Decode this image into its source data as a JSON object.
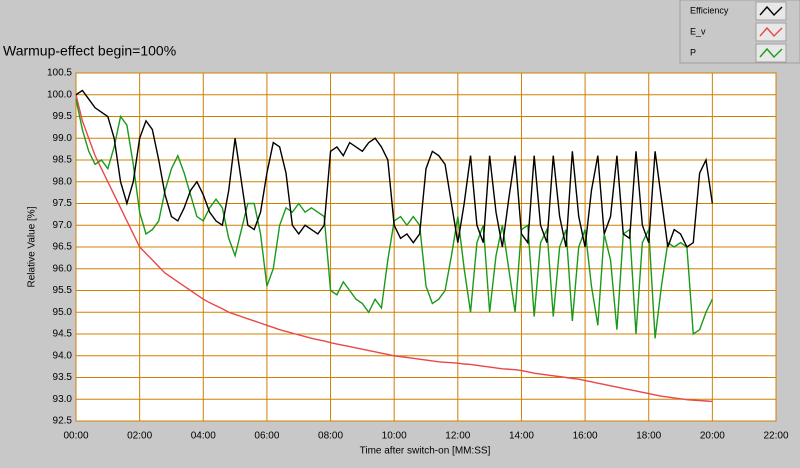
{
  "chart_data": {
    "type": "line",
    "title": "Warmup-effect begin=100%",
    "x_label": "Time after switch-on [MM:SS]",
    "y_label": "Relative Value [%]",
    "grid": true,
    "grid_color": "#d08000",
    "xlim": [
      0,
      22
    ],
    "xticks": [
      {
        "value": 0,
        "label": "00:00"
      },
      {
        "value": 2,
        "label": "02:00"
      },
      {
        "value": 4,
        "label": "04:00"
      },
      {
        "value": 6,
        "label": "06:00"
      },
      {
        "value": 8,
        "label": "08:00"
      },
      {
        "value": 10,
        "label": "10:00"
      },
      {
        "value": 12,
        "label": "12:00"
      },
      {
        "value": 14,
        "label": "14:00"
      },
      {
        "value": 16,
        "label": "16:00"
      },
      {
        "value": 18,
        "label": "18:00"
      },
      {
        "value": 20,
        "label": "20:00"
      },
      {
        "value": 22,
        "label": "22:00"
      }
    ],
    "ylim": [
      92.5,
      100.5
    ],
    "yticks": [
      92.5,
      {
        "value": 93,
        "label": "93.0"
      },
      93.5,
      {
        "value": 94,
        "label": "94.0"
      },
      94.5,
      {
        "value": 95,
        "label": "95.0"
      },
      95.5,
      {
        "value": 96,
        "label": "96.0"
      },
      96.5,
      {
        "value": 97,
        "label": "97.0"
      },
      97.5,
      {
        "value": 98,
        "label": "98.0"
      },
      98.5,
      {
        "value": 99,
        "label": "99.0"
      },
      99.5,
      {
        "value": 100,
        "label": "100.0"
      },
      100.5
    ],
    "x": [
      0,
      0.2,
      0.4,
      0.6,
      0.8,
      1,
      1.2,
      1.4,
      1.6,
      1.8,
      2,
      2.2,
      2.4,
      2.6,
      2.8,
      3,
      3.2,
      3.4,
      3.6,
      3.8,
      4,
      4.2,
      4.4,
      4.6,
      4.8,
      5,
      5.2,
      5.4,
      5.6,
      5.8,
      6,
      6.2,
      6.4,
      6.6,
      6.8,
      7,
      7.2,
      7.4,
      7.6,
      7.8,
      8,
      8.2,
      8.4,
      8.6,
      8.8,
      9,
      9.2,
      9.4,
      9.6,
      9.8,
      10,
      10.2,
      10.4,
      10.6,
      10.8,
      11,
      11.2,
      11.4,
      11.6,
      11.8,
      12,
      12.2,
      12.4,
      12.6,
      12.8,
      13,
      13.2,
      13.4,
      13.6,
      13.8,
      14,
      14.2,
      14.4,
      14.6,
      14.8,
      15,
      15.2,
      15.4,
      15.6,
      15.8,
      16,
      16.2,
      16.4,
      16.6,
      16.8,
      17,
      17.2,
      17.4,
      17.6,
      17.8,
      18,
      18.2,
      18.4,
      18.6,
      18.8,
      19,
      19.2,
      19.4,
      19.6,
      19.8,
      20
    ],
    "series": [
      {
        "name": "Efficiency",
        "color": "#000000",
        "values": [
          100.0,
          100.1,
          99.9,
          99.7,
          99.6,
          99.5,
          99.0,
          98.0,
          97.5,
          98.0,
          99.0,
          99.4,
          99.2,
          98.5,
          97.7,
          97.2,
          97.1,
          97.4,
          97.8,
          98.0,
          97.7,
          97.3,
          97.1,
          97.0,
          97.8,
          99.0,
          98.0,
          97.0,
          96.9,
          97.3,
          98.2,
          98.9,
          98.8,
          98.2,
          97.0,
          96.8,
          97.0,
          96.9,
          96.8,
          97.0,
          98.7,
          98.8,
          98.6,
          98.9,
          98.8,
          98.7,
          98.9,
          99.0,
          98.8,
          98.5,
          97.0,
          96.7,
          96.8,
          96.6,
          96.8,
          98.3,
          98.7,
          98.6,
          98.4,
          97.5,
          96.6,
          97.5,
          98.6,
          97.0,
          96.6,
          98.6,
          97.3,
          96.5,
          97.6,
          98.6,
          96.8,
          96.6,
          98.6,
          97.0,
          96.6,
          98.6,
          97.2,
          96.5,
          98.7,
          97.2,
          96.5,
          97.8,
          98.6,
          96.8,
          97.2,
          98.6,
          96.8,
          96.7,
          98.7,
          97.0,
          96.6,
          98.7,
          97.6,
          96.5,
          96.9,
          96.8,
          96.5,
          96.6,
          98.2,
          98.5,
          97.5
        ]
      },
      {
        "name": "E_v",
        "color": "#e84848",
        "values": [
          100.0,
          99.4,
          99.0,
          98.6,
          98.3,
          98.0,
          97.7,
          97.4,
          97.1,
          96.8,
          96.5,
          96.35,
          96.2,
          96.05,
          95.9,
          95.8,
          95.7,
          95.6,
          95.5,
          95.4,
          95.3,
          95.22,
          95.15,
          95.08,
          95.0,
          94.95,
          94.9,
          94.85,
          94.8,
          94.75,
          94.7,
          94.65,
          94.6,
          94.56,
          94.52,
          94.48,
          94.44,
          94.4,
          94.37,
          94.34,
          94.3,
          94.27,
          94.24,
          94.21,
          94.18,
          94.15,
          94.12,
          94.09,
          94.06,
          94.03,
          94.0,
          93.98,
          93.96,
          93.94,
          93.92,
          93.9,
          93.88,
          93.86,
          93.85,
          93.84,
          93.83,
          93.81,
          93.8,
          93.78,
          93.76,
          93.74,
          93.72,
          93.7,
          93.69,
          93.68,
          93.66,
          93.63,
          93.6,
          93.58,
          93.56,
          93.54,
          93.52,
          93.5,
          93.48,
          93.46,
          93.43,
          93.4,
          93.37,
          93.34,
          93.31,
          93.28,
          93.25,
          93.22,
          93.19,
          93.16,
          93.13,
          93.1,
          93.07,
          93.05,
          93.03,
          93.01,
          92.99,
          92.98,
          92.97,
          92.96,
          92.95
        ]
      },
      {
        "name": "P",
        "color": "#1a9a1a",
        "values": [
          99.9,
          99.2,
          98.7,
          98.4,
          98.5,
          98.3,
          98.8,
          99.5,
          99.3,
          98.4,
          97.3,
          96.8,
          96.9,
          97.1,
          97.8,
          98.3,
          98.6,
          98.2,
          97.7,
          97.2,
          97.1,
          97.4,
          97.6,
          97.4,
          96.7,
          96.3,
          96.9,
          97.5,
          97.5,
          96.8,
          95.6,
          96.0,
          97.0,
          97.4,
          97.3,
          97.5,
          97.3,
          97.4,
          97.3,
          97.2,
          95.5,
          95.4,
          95.7,
          95.5,
          95.3,
          95.2,
          95.0,
          95.3,
          95.1,
          96.2,
          97.1,
          97.2,
          97.0,
          97.2,
          97.0,
          95.6,
          95.2,
          95.3,
          95.5,
          96.3,
          97.2,
          96.0,
          95.0,
          96.6,
          97.0,
          95.0,
          96.3,
          97.0,
          96.0,
          95.0,
          96.9,
          97.0,
          94.9,
          96.6,
          96.9,
          94.9,
          96.5,
          96.9,
          94.8,
          96.5,
          96.9,
          95.6,
          94.7,
          96.8,
          96.2,
          94.6,
          96.8,
          96.9,
          94.5,
          96.6,
          96.9,
          94.4,
          95.6,
          96.6,
          96.5,
          96.6,
          96.5,
          94.5,
          94.6,
          95.0,
          95.3
        ]
      }
    ]
  }
}
